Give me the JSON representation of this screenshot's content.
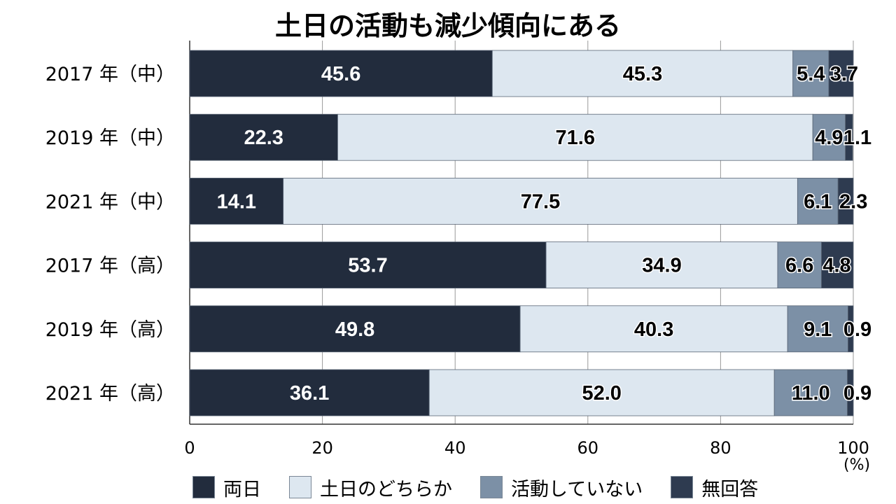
{
  "chart_data": {
    "type": "bar",
    "orientation": "horizontal",
    "stacked": true,
    "title": "土日の活動も減少傾向にある",
    "categories": [
      "2017 年（中）",
      "2019 年（中）",
      "2021 年（中）",
      "2017 年（高）",
      "2019 年（高）",
      "2021 年（高）"
    ],
    "series": [
      {
        "name": "両日",
        "color": "#222c3d",
        "values": [
          45.6,
          22.3,
          14.1,
          53.7,
          49.8,
          36.1
        ]
      },
      {
        "name": "土日のどちらか",
        "color": "#dde7f0",
        "values": [
          45.3,
          71.6,
          77.5,
          34.9,
          40.3,
          52.0
        ]
      },
      {
        "name": "活動していない",
        "color": "#7c90a6",
        "values": [
          5.4,
          4.9,
          6.1,
          6.6,
          9.1,
          11.0
        ]
      },
      {
        "name": "無回答",
        "color": "#2e3b50",
        "values": [
          3.7,
          1.1,
          2.3,
          4.8,
          0.9,
          0.9
        ]
      }
    ],
    "xlim": [
      0,
      100
    ],
    "xticks": [
      "0",
      "20",
      "40",
      "60",
      "80",
      "100"
    ],
    "x_unit": "(%)",
    "grid": true,
    "legend_position": "bottom"
  }
}
